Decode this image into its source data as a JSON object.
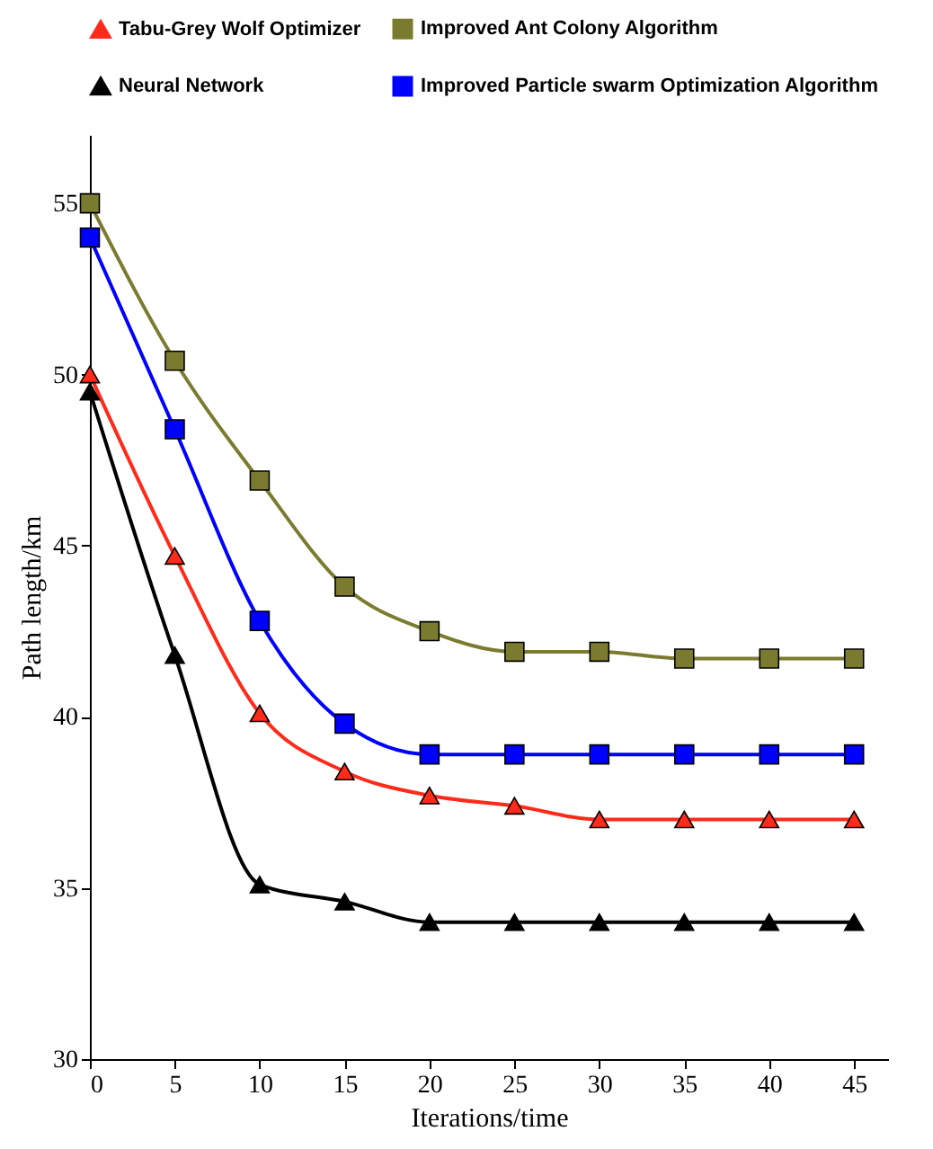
{
  "chart_data": {
    "type": "line",
    "xlabel": "Iterations/time",
    "ylabel": "Path length/km",
    "x": [
      0,
      5,
      10,
      15,
      20,
      25,
      30,
      35,
      40,
      45
    ],
    "series": [
      {
        "name": "Tabu-Grey Wolf Optimizer",
        "color": "#ff2a1a",
        "marker": "triangle",
        "values": [
          50,
          44.7,
          40.1,
          38.4,
          37.7,
          37.4,
          37.0,
          37.0,
          37.0,
          37.0
        ]
      },
      {
        "name": "Improved Ant Colony Algorithm",
        "color": "#7b7b30",
        "marker": "square",
        "values": [
          55,
          50.4,
          46.9,
          43.8,
          42.5,
          41.9,
          41.9,
          41.7,
          41.7,
          41.7
        ]
      },
      {
        "name": "Neural Network",
        "color": "#000000",
        "marker": "triangle",
        "values": [
          49.5,
          41.8,
          35.1,
          34.6,
          34.0,
          34.0,
          34.0,
          34.0,
          34.0,
          34.0
        ]
      },
      {
        "name": "Improved Particle swarm Optimization Algorithm",
        "color": "#0000ff",
        "marker": "square",
        "values": [
          54,
          48.4,
          42.8,
          39.8,
          38.9,
          38.9,
          38.9,
          38.9,
          38.9,
          38.9
        ]
      }
    ],
    "xlim": [
      0,
      47
    ],
    "ylim": [
      30,
      57
    ],
    "xticks": [
      0,
      5,
      10,
      15,
      20,
      25,
      30,
      35,
      40,
      45
    ],
    "yticks": [
      30,
      35,
      40,
      45,
      50,
      55
    ],
    "grid": false,
    "legend": "top",
    "line_style": "solid"
  }
}
